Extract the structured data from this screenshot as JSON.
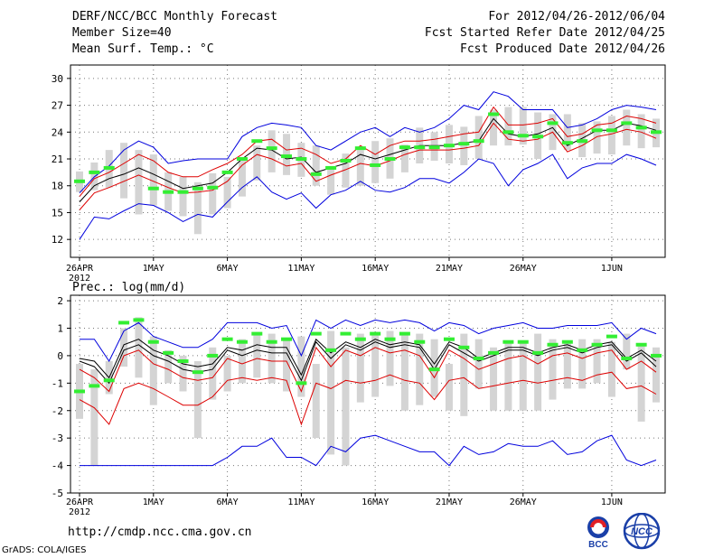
{
  "header": {
    "title": "DERF/NCC/BCC Monthly Forecast",
    "member_size": "Member Size=40",
    "variable": "Mean Surf. Temp.: °C",
    "forecast_period": "For 2012/04/26-2012/06/04",
    "started_refer": "Fcst Started Refer Date 2012/04/25",
    "produced": "Fcst Produced Date 2012/04/26"
  },
  "footer": {
    "url": "http://cmdp.ncc.cma.gov.cn",
    "grads": "GrADS: COLA/IGES",
    "logo_bcc_text": "BCC",
    "logo_ncc_text": "NCC"
  },
  "colors": {
    "ensemble_box": "#d4d4d4",
    "obs_marker": "#33ee33",
    "mean_line": "#000000",
    "spread_line": "#dd0000",
    "envelope_line": "#0000dd",
    "grid": "#777777"
  },
  "chart_data": [
    {
      "type": "line",
      "title": "Mean Surf. Temp.: °C",
      "ylabel": "°C",
      "ylim": [
        10,
        31.5
      ],
      "yticks": [
        12,
        15,
        18,
        21,
        24,
        27,
        30
      ],
      "xticks": [
        {
          "day": 0,
          "label": "26APR",
          "sublabel": "2012"
        },
        {
          "day": 5,
          "label": "1MAY"
        },
        {
          "day": 10,
          "label": "6MAY"
        },
        {
          "day": 15,
          "label": "11MAY"
        },
        {
          "day": 20,
          "label": "16MAY"
        },
        {
          "day": 25,
          "label": "21MAY"
        },
        {
          "day": 30,
          "label": "26MAY"
        },
        {
          "day": 36,
          "label": "1JUN"
        }
      ],
      "days": 40,
      "ensemble_range": [
        [
          17.3,
          19.6
        ],
        [
          17.5,
          20.6
        ],
        [
          17.8,
          22.0
        ],
        [
          16.6,
          22.8
        ],
        [
          14.8,
          22.0
        ],
        [
          15.8,
          21.5
        ],
        [
          15.2,
          19.5
        ],
        [
          14.6,
          19.0
        ],
        [
          12.6,
          18.4
        ],
        [
          14.8,
          19.4
        ],
        [
          15.5,
          19.0
        ],
        [
          16.8,
          21.0
        ],
        [
          18.6,
          22.5
        ],
        [
          19.5,
          24.2
        ],
        [
          19.2,
          23.8
        ],
        [
          19.0,
          22.8
        ],
        [
          18.0,
          22.5
        ],
        [
          17.0,
          20.2
        ],
        [
          17.8,
          21.6
        ],
        [
          18.0,
          22.0
        ],
        [
          18.3,
          23.0
        ],
        [
          18.8,
          23.3
        ],
        [
          19.5,
          22.6
        ],
        [
          20.5,
          24.5
        ],
        [
          20.8,
          24.0
        ],
        [
          20.5,
          24.8
        ],
        [
          20.3,
          24.6
        ],
        [
          21.0,
          25.8
        ],
        [
          22.5,
          26.5
        ],
        [
          22.5,
          26.8
        ],
        [
          22.6,
          26.8
        ],
        [
          21.0,
          26.2
        ],
        [
          22.0,
          26.0
        ],
        [
          22.0,
          26.0
        ],
        [
          21.2,
          25.0
        ],
        [
          21.6,
          25.2
        ],
        [
          21.5,
          25.8
        ],
        [
          22.5,
          26.5
        ],
        [
          22.2,
          26.0
        ],
        [
          22.3,
          25.5
        ]
      ],
      "observed": [
        18.5,
        19.5,
        20.0,
        null,
        null,
        17.7,
        17.3,
        17.3,
        17.7,
        17.8,
        19.5,
        21.0,
        23.0,
        22.2,
        21.3,
        21.0,
        19.3,
        20.0,
        20.8,
        22.2,
        20.3,
        21.0,
        22.3,
        22.3,
        22.3,
        22.5,
        22.7,
        23.0,
        26.0,
        24.0,
        23.6,
        23.5,
        25.0,
        22.8,
        23.0,
        24.2,
        24.2,
        25.0,
        24.5,
        24.0
      ],
      "series": [
        {
          "name": "max",
          "color": "blue",
          "values": [
            17.2,
            19.0,
            20.2,
            22.0,
            23.0,
            22.3,
            20.5,
            20.8,
            21.0,
            21.0,
            21.0,
            23.5,
            24.5,
            25.0,
            24.8,
            24.5,
            22.5,
            22.0,
            23.0,
            24.0,
            24.5,
            23.5,
            24.5,
            24.0,
            24.5,
            25.5,
            27.0,
            26.5,
            28.5,
            28.0,
            26.5,
            26.5,
            26.5,
            24.5,
            24.8,
            25.5,
            26.5,
            27.0,
            26.8,
            26.5
          ]
        },
        {
          "name": "upper",
          "color": "red",
          "values": [
            16.8,
            18.8,
            19.5,
            20.5,
            21.5,
            20.8,
            19.5,
            19.0,
            19.0,
            19.8,
            20.5,
            21.5,
            23.0,
            23.2,
            22.0,
            22.2,
            21.5,
            20.5,
            21.0,
            22.5,
            21.5,
            22.5,
            23.0,
            23.0,
            23.2,
            23.5,
            23.8,
            24.0,
            26.8,
            24.8,
            24.8,
            25.0,
            25.5,
            23.5,
            23.8,
            24.8,
            25.0,
            25.8,
            25.5,
            25.0
          ]
        },
        {
          "name": "mean",
          "color": "black",
          "values": [
            16.2,
            18.0,
            18.8,
            19.3,
            20.0,
            19.3,
            18.5,
            17.7,
            18.0,
            18.3,
            19.5,
            21.0,
            22.2,
            22.0,
            21.0,
            21.2,
            19.5,
            20.0,
            20.5,
            21.5,
            21.0,
            21.5,
            22.0,
            22.5,
            22.5,
            22.5,
            22.8,
            23.0,
            25.5,
            23.8,
            23.5,
            23.8,
            24.5,
            22.5,
            23.3,
            24.2,
            24.2,
            25.0,
            24.7,
            24.2
          ]
        },
        {
          "name": "lower",
          "color": "red",
          "values": [
            15.3,
            17.2,
            17.8,
            18.5,
            19.2,
            18.5,
            17.8,
            17.2,
            17.3,
            17.5,
            18.5,
            20.3,
            21.5,
            21.0,
            20.2,
            20.5,
            18.5,
            19.2,
            19.8,
            20.5,
            20.2,
            20.8,
            21.5,
            22.0,
            22.0,
            22.0,
            22.2,
            22.5,
            25.0,
            23.2,
            23.0,
            23.2,
            24.0,
            21.8,
            22.5,
            23.5,
            23.8,
            24.3,
            24.0,
            23.3
          ]
        },
        {
          "name": "min",
          "color": "blue",
          "values": [
            12.0,
            14.5,
            14.3,
            15.2,
            16.0,
            15.8,
            15.0,
            14.0,
            14.8,
            14.5,
            16.2,
            17.8,
            19.0,
            17.3,
            16.5,
            17.2,
            15.5,
            17.0,
            17.5,
            18.5,
            17.5,
            17.3,
            17.8,
            18.8,
            18.8,
            18.3,
            19.5,
            21.0,
            20.5,
            18.0,
            19.8,
            20.5,
            21.5,
            18.8,
            20.0,
            20.5,
            20.5,
            21.5,
            21.0,
            20.3
          ]
        }
      ]
    },
    {
      "type": "line",
      "title": "Prec.: log(mm/d)",
      "ylabel": "log(mm/d)",
      "ylim": [
        -5,
        2.2
      ],
      "yticks": [
        -5,
        -4,
        -3,
        -2,
        -1,
        0,
        1,
        2
      ],
      "xticks": [
        {
          "day": 0,
          "label": "26APR",
          "sublabel": "2012"
        },
        {
          "day": 5,
          "label": "1MAY"
        },
        {
          "day": 10,
          "label": "6MAY"
        },
        {
          "day": 15,
          "label": "11MAY"
        },
        {
          "day": 20,
          "label": "16MAY"
        },
        {
          "day": 25,
          "label": "21MAY"
        },
        {
          "day": 30,
          "label": "26MAY"
        },
        {
          "day": 36,
          "label": "1JUN"
        }
      ],
      "days": 40,
      "ensemble_range": [
        [
          -2.3,
          -0.3
        ],
        [
          -4.0,
          -0.5
        ],
        [
          -1.4,
          -0.2
        ],
        [
          -0.4,
          1.0
        ],
        [
          -0.8,
          1.4
        ],
        [
          -1.8,
          0.7
        ],
        [
          -1.0,
          0.2
        ],
        [
          -1.3,
          0.0
        ],
        [
          -3.0,
          -0.2
        ],
        [
          -1.6,
          0.3
        ],
        [
          -1.3,
          0.0
        ],
        [
          -1.0,
          0.6
        ],
        [
          -0.8,
          0.8
        ],
        [
          -1.0,
          0.8
        ],
        [
          -1.3,
          0.6
        ],
        [
          -1.5,
          0.7
        ],
        [
          -3.0,
          -0.3
        ],
        [
          -3.6,
          0.9
        ],
        [
          -4.0,
          0.3
        ],
        [
          -1.7,
          0.8
        ],
        [
          -1.5,
          0.8
        ],
        [
          -1.1,
          0.9
        ],
        [
          -2.0,
          0.8
        ],
        [
          -1.8,
          0.8
        ],
        [
          -1.5,
          0.6
        ],
        [
          -2.0,
          -0.3
        ],
        [
          -2.2,
          0.8
        ],
        [
          -1.2,
          0.6
        ],
        [
          -2.0,
          0.3
        ],
        [
          -2.0,
          0.5
        ],
        [
          -2.0,
          0.5
        ],
        [
          -2.0,
          0.8
        ],
        [
          -1.6,
          0.6
        ],
        [
          -1.2,
          0.5
        ],
        [
          -1.2,
          0.6
        ],
        [
          -1.0,
          0.6
        ],
        [
          -1.5,
          0.5
        ],
        [
          -0.5,
          0.8
        ],
        [
          -2.4,
          0.4
        ],
        [
          -1.7,
          0.3
        ]
      ],
      "observed": [
        -1.3,
        -1.1,
        -0.9,
        1.2,
        1.3,
        0.5,
        0.1,
        -0.2,
        -0.6,
        0.0,
        0.6,
        0.5,
        0.8,
        0.5,
        0.6,
        -1.0,
        0.8,
        0.2,
        0.8,
        0.6,
        0.8,
        0.6,
        0.8,
        0.5,
        -0.5,
        0.6,
        0.3,
        -0.1,
        0.1,
        0.5,
        0.5,
        0.1,
        0.4,
        0.5,
        0.2,
        0.4,
        0.7,
        -0.1,
        0.4,
        0.0
      ],
      "series": [
        {
          "name": "max",
          "color": "blue",
          "values": [
            0.6,
            0.6,
            -0.2,
            0.9,
            1.2,
            0.7,
            0.5,
            0.3,
            0.3,
            0.6,
            1.2,
            1.2,
            1.2,
            1.0,
            1.1,
            0.0,
            1.3,
            1.0,
            1.3,
            1.1,
            1.3,
            1.2,
            1.3,
            1.2,
            0.9,
            1.2,
            1.1,
            0.8,
            1.0,
            1.1,
            1.2,
            1.0,
            1.0,
            1.1,
            1.1,
            1.1,
            1.2,
            0.6,
            1.0,
            0.8
          ]
        },
        {
          "name": "upper",
          "color": "black",
          "values": [
            -0.1,
            -0.2,
            -0.8,
            0.4,
            0.6,
            0.2,
            0.0,
            -0.3,
            -0.4,
            -0.3,
            0.3,
            0.2,
            0.4,
            0.3,
            0.3,
            -0.7,
            0.6,
            0.1,
            0.5,
            0.3,
            0.6,
            0.4,
            0.5,
            0.4,
            -0.3,
            0.5,
            0.3,
            -0.1,
            0.1,
            0.3,
            0.3,
            0.1,
            0.3,
            0.4,
            0.2,
            0.4,
            0.5,
            -0.1,
            0.2,
            -0.2
          ]
        },
        {
          "name": "mean",
          "color": "black",
          "values": [
            -0.2,
            -0.4,
            -1.0,
            0.2,
            0.4,
            0.0,
            -0.2,
            -0.5,
            -0.6,
            -0.5,
            0.2,
            0.0,
            0.2,
            0.1,
            0.1,
            -0.9,
            0.5,
            -0.1,
            0.4,
            0.2,
            0.5,
            0.3,
            0.4,
            0.3,
            -0.5,
            0.4,
            0.1,
            -0.2,
            0.0,
            0.2,
            0.2,
            0.0,
            0.2,
            0.3,
            0.1,
            0.3,
            0.4,
            -0.2,
            0.1,
            -0.4
          ]
        },
        {
          "name": "lower",
          "color": "red",
          "values": [
            -0.5,
            -0.8,
            -1.3,
            0.0,
            0.2,
            -0.3,
            -0.5,
            -0.8,
            -0.9,
            -0.8,
            -0.1,
            -0.3,
            -0.1,
            -0.2,
            -0.2,
            -1.3,
            0.3,
            -0.4,
            0.2,
            0.0,
            0.3,
            0.1,
            0.2,
            0.0,
            -0.8,
            0.2,
            -0.1,
            -0.5,
            -0.3,
            -0.1,
            0.0,
            -0.3,
            0.0,
            0.1,
            -0.1,
            0.1,
            0.2,
            -0.5,
            -0.2,
            -0.6
          ]
        },
        {
          "name": "min",
          "color": "red",
          "values": [
            -1.6,
            -1.9,
            -2.5,
            -1.2,
            -1.0,
            -1.2,
            -1.5,
            -1.8,
            -1.8,
            -1.5,
            -0.9,
            -0.8,
            -0.9,
            -0.8,
            -0.9,
            -2.5,
            -1.0,
            -1.2,
            -0.9,
            -1.0,
            -0.9,
            -0.7,
            -0.9,
            -1.0,
            -1.6,
            -0.9,
            -0.8,
            -1.2,
            -1.1,
            -1.0,
            -0.9,
            -1.0,
            -0.9,
            -0.8,
            -0.9,
            -0.7,
            -0.6,
            -1.2,
            -1.1,
            -1.4
          ]
        },
        {
          "name": "floor",
          "color": "blue",
          "values": [
            -4.0,
            -4.0,
            -4.0,
            -4.0,
            -4.0,
            -4.0,
            -4.0,
            -4.0,
            -4.0,
            -4.0,
            -3.7,
            -3.3,
            -3.3,
            -3.0,
            -3.7,
            -3.7,
            -4.0,
            -3.3,
            -3.5,
            -3.0,
            -2.9,
            -3.1,
            -3.3,
            -3.5,
            -3.5,
            -4.0,
            -3.3,
            -3.6,
            -3.5,
            -3.2,
            -3.3,
            -3.3,
            -3.1,
            -3.6,
            -3.5,
            -3.1,
            -2.9,
            -3.8,
            -4.0,
            -3.8
          ]
        }
      ]
    }
  ]
}
